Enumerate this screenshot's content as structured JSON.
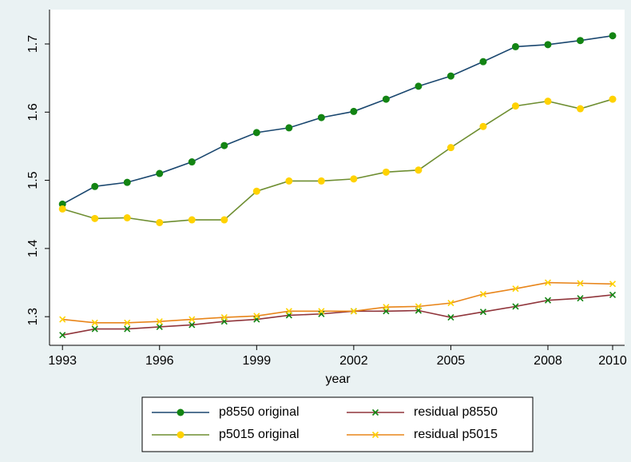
{
  "chart_data": {
    "type": "line",
    "x_label": "year",
    "x": [
      1993,
      1994,
      1995,
      1996,
      1997,
      1998,
      1999,
      2000,
      2001,
      2002,
      2003,
      2004,
      2005,
      2006,
      2007,
      2008,
      2009,
      2010
    ],
    "xlim": [
      1992.6,
      2010.37
    ],
    "xticks": [
      1993,
      1996,
      1999,
      2002,
      2005,
      2008,
      2010
    ],
    "ylim": [
      1.258,
      1.7504
    ],
    "yticks": [
      1.3,
      1.4,
      1.5,
      1.6,
      1.7
    ],
    "grid": false,
    "legend": "bottom",
    "series": [
      {
        "name": "p8550 original",
        "color": "#1a476f",
        "marker": "circle",
        "marker_color": "#138413",
        "values": [
          1.465,
          1.491,
          1.497,
          1.51,
          1.527,
          1.551,
          1.57,
          1.577,
          1.592,
          1.601,
          1.619,
          1.638,
          1.653,
          1.674,
          1.696,
          1.699,
          1.705,
          1.712
        ]
      },
      {
        "name": "p5015 original",
        "color": "#6e8e31",
        "marker": "circle",
        "marker_color": "#ffd200",
        "values": [
          1.458,
          1.444,
          1.445,
          1.438,
          1.442,
          1.442,
          1.484,
          1.499,
          1.499,
          1.502,
          1.512,
          1.515,
          1.548,
          1.579,
          1.609,
          1.616,
          1.605,
          1.619
        ]
      },
      {
        "name": "residual p8550",
        "color": "#90353b",
        "marker": "x",
        "marker_color": "#138413",
        "values": [
          1.273,
          1.282,
          1.282,
          1.285,
          1.288,
          1.293,
          1.296,
          1.302,
          1.304,
          1.308,
          1.308,
          1.309,
          1.299,
          1.307,
          1.315,
          1.324,
          1.327,
          1.332
        ]
      },
      {
        "name": "residual p5015",
        "color": "#e8851a",
        "marker": "x",
        "marker_color": "#ffd200",
        "values": [
          1.296,
          1.291,
          1.291,
          1.293,
          1.296,
          1.299,
          1.301,
          1.308,
          1.308,
          1.308,
          1.314,
          1.315,
          1.32,
          1.333,
          1.341,
          1.35,
          1.349,
          1.348
        ]
      }
    ]
  }
}
